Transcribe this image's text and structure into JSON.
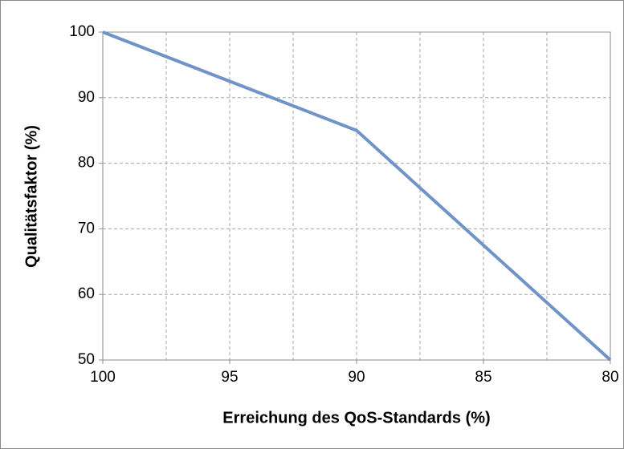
{
  "chart_data": {
    "type": "line",
    "x_label": "Erreichung des QoS-Standards (%)",
    "y_label": "Qualitätsfaktor (%)",
    "x": [
      100,
      90,
      80
    ],
    "series": [
      {
        "color": "#7094c8",
        "values": [
          100,
          85,
          50
        ]
      }
    ],
    "xlim": [
      100,
      80
    ],
    "xticks": [
      100,
      95,
      90,
      85,
      80
    ],
    "xminorticks": [
      97.5,
      92.5,
      87.5,
      82.5
    ],
    "ylim": [
      50,
      100
    ],
    "yticks": [
      50,
      60,
      70,
      80,
      90,
      100
    ],
    "grid": true
  }
}
